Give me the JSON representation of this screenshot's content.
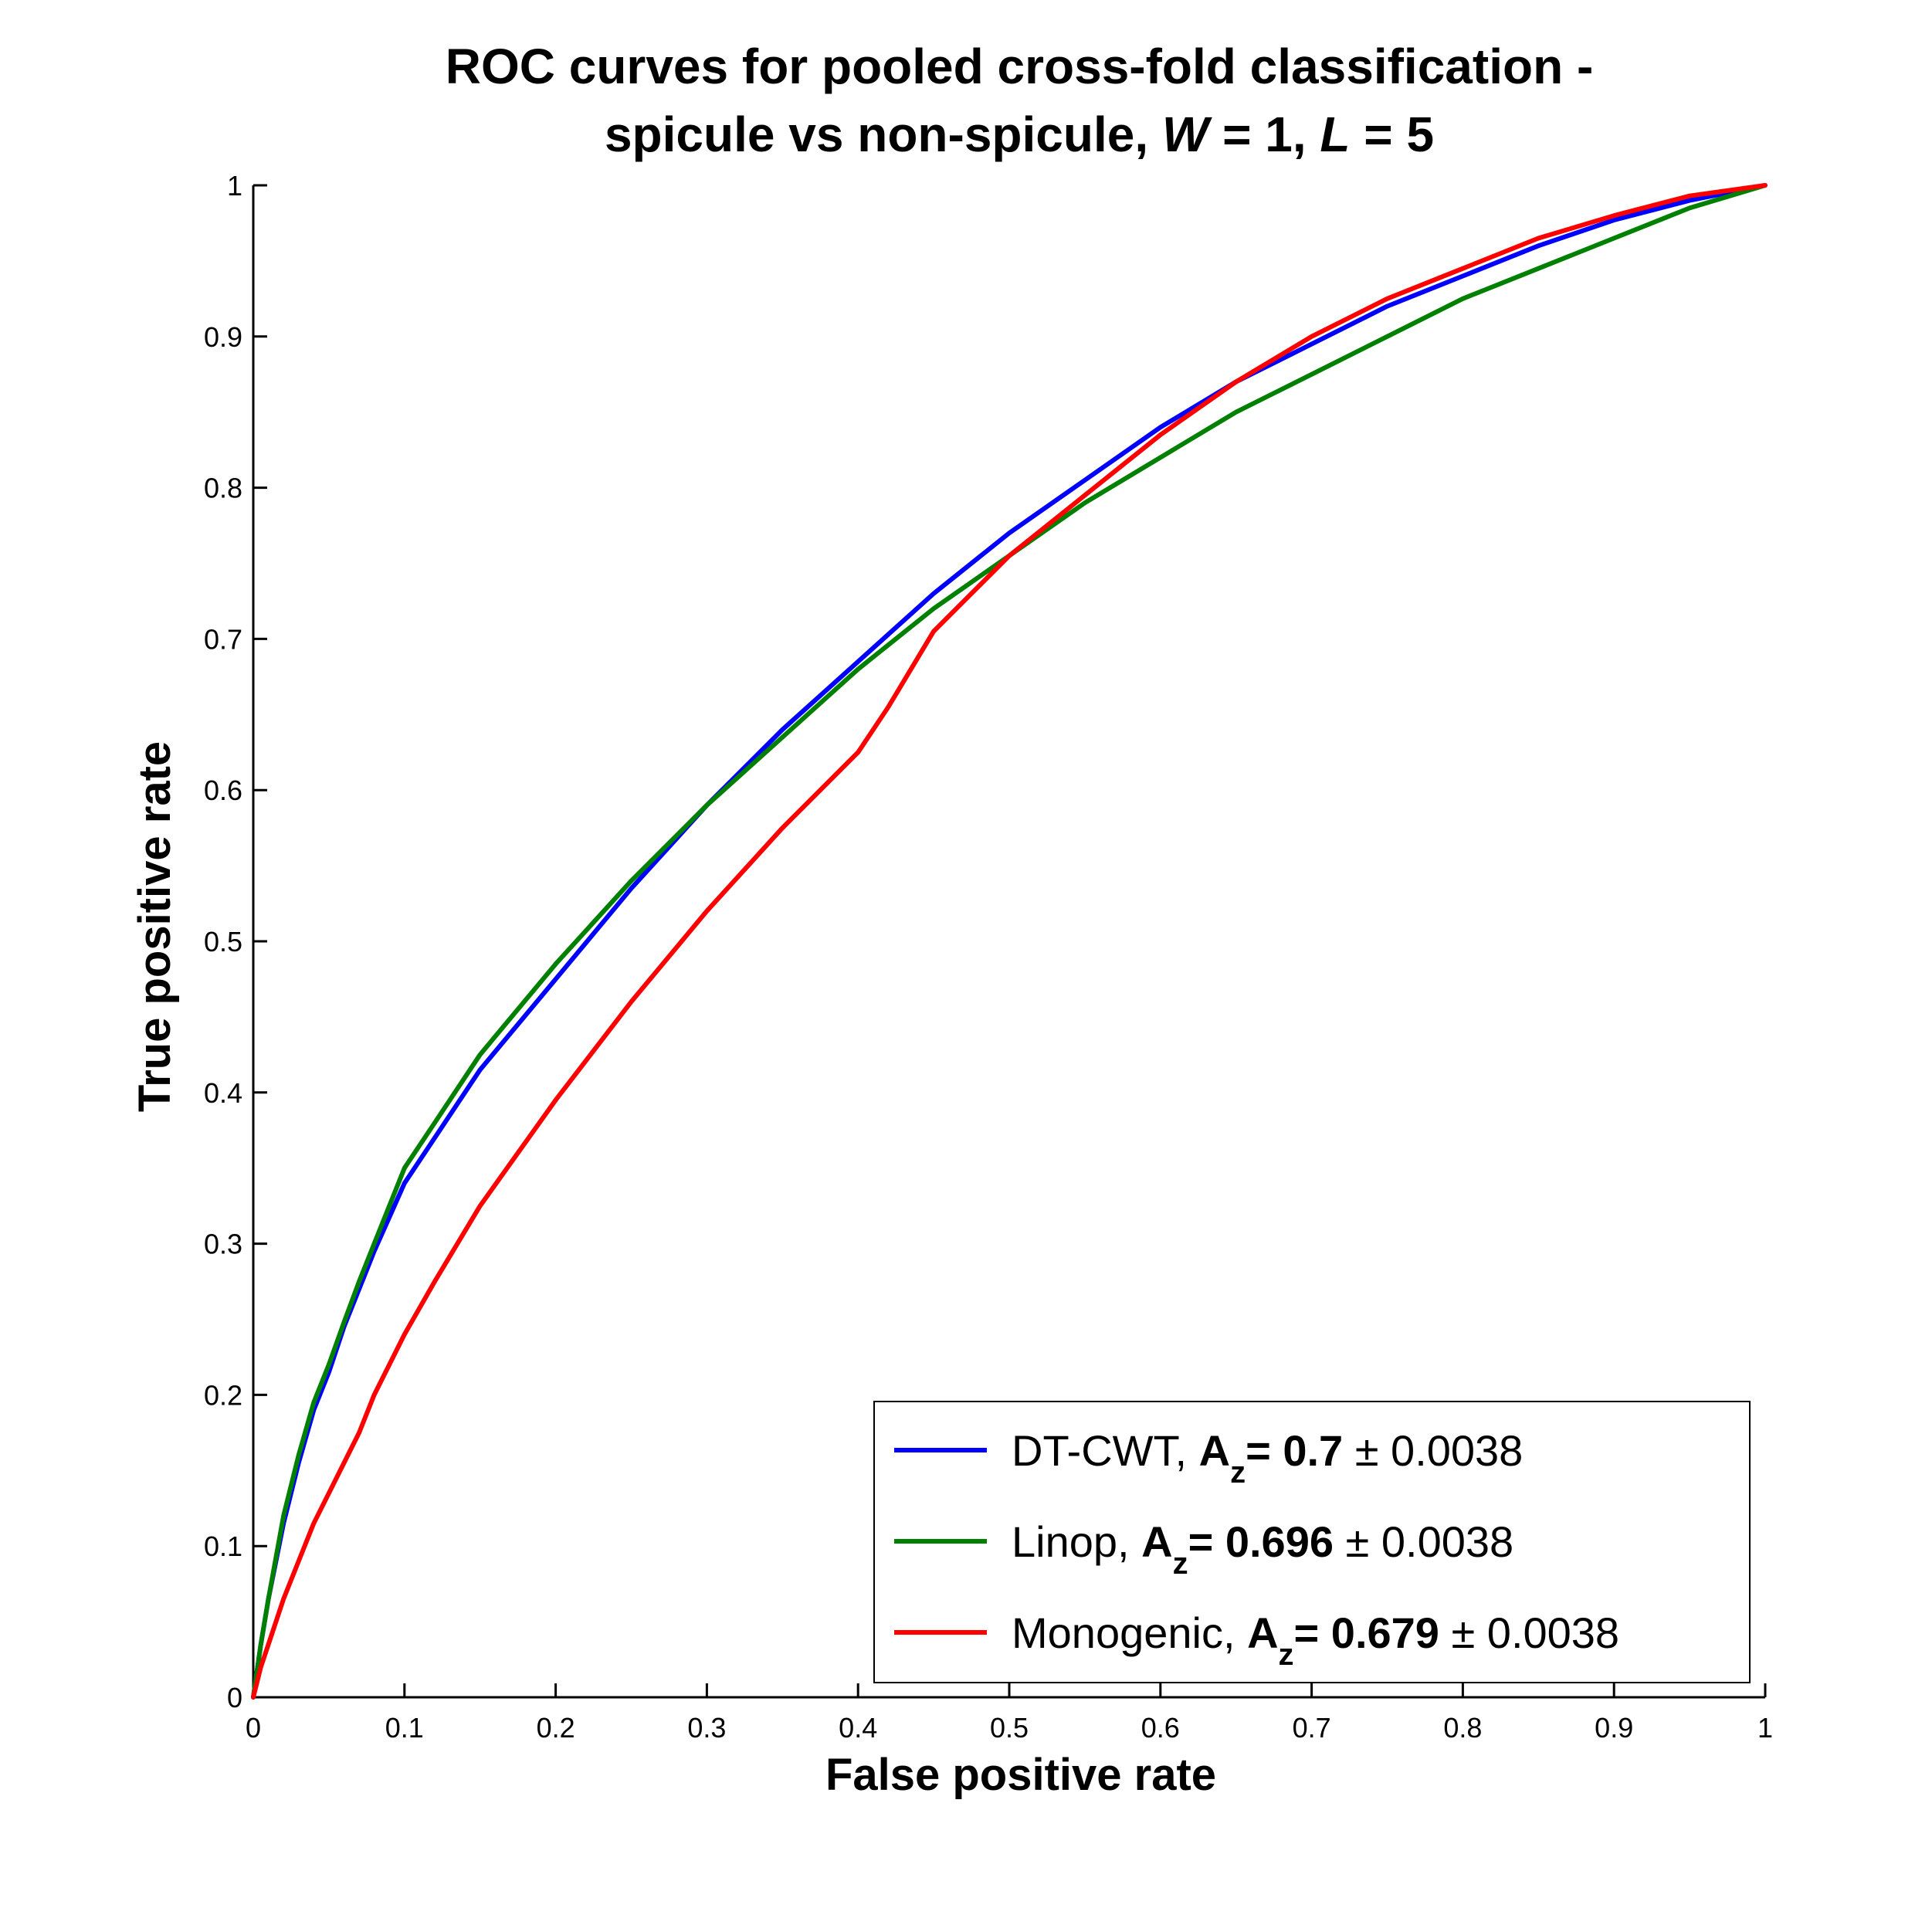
{
  "chart_data": {
    "type": "line",
    "title_line1": "ROC curves for pooled cross-fold classification -",
    "title_line2": {
      "prefix": "spicule vs non-spicule,  ",
      "w_symbol": "W",
      "w_value": " = 1,  ",
      "l_symbol": "L",
      "l_value": " = 5"
    },
    "xlabel": "False positive rate",
    "ylabel": "True positive rate",
    "xlim": [
      0,
      1
    ],
    "ylim": [
      0,
      1
    ],
    "xticks": [
      "0",
      "0.1",
      "0.2",
      "0.3",
      "0.4",
      "0.5",
      "0.6",
      "0.7",
      "0.8",
      "0.9",
      "1"
    ],
    "yticks": [
      "0",
      "0.1",
      "0.2",
      "0.3",
      "0.4",
      "0.5",
      "0.6",
      "0.7",
      "0.8",
      "0.9",
      "1"
    ],
    "grid": false,
    "legend_position": "bottom-right",
    "series": [
      {
        "name": "DT-CWT",
        "color": "#0000ff",
        "az_symbol": "A",
        "az_subscript": "z",
        "az_value": "= 0.7",
        "pm": "±",
        "std": "0.0038",
        "x": [
          0,
          0.005,
          0.01,
          0.02,
          0.03,
          0.04,
          0.05,
          0.06,
          0.07,
          0.08,
          0.1,
          0.12,
          0.15,
          0.2,
          0.25,
          0.3,
          0.35,
          0.4,
          0.45,
          0.5,
          0.55,
          0.6,
          0.65,
          0.7,
          0.75,
          0.8,
          0.85,
          0.9,
          0.95,
          1
        ],
        "y": [
          0,
          0.035,
          0.065,
          0.115,
          0.155,
          0.19,
          0.215,
          0.245,
          0.27,
          0.295,
          0.34,
          0.37,
          0.415,
          0.475,
          0.535,
          0.59,
          0.64,
          0.685,
          0.73,
          0.77,
          0.805,
          0.84,
          0.87,
          0.895,
          0.92,
          0.94,
          0.96,
          0.977,
          0.99,
          1
        ]
      },
      {
        "name": "Linop",
        "color": "#008000",
        "az_symbol": "A",
        "az_subscript": "z",
        "az_value": "= 0.696",
        "pm": "±",
        "std": "0.0038",
        "x": [
          0,
          0.005,
          0.01,
          0.02,
          0.03,
          0.04,
          0.05,
          0.06,
          0.07,
          0.08,
          0.1,
          0.12,
          0.15,
          0.2,
          0.25,
          0.3,
          0.35,
          0.4,
          0.45,
          0.5,
          0.55,
          0.6,
          0.65,
          0.7,
          0.75,
          0.8,
          0.85,
          0.9,
          0.95,
          1
        ],
        "y": [
          0,
          0.035,
          0.065,
          0.12,
          0.16,
          0.195,
          0.22,
          0.248,
          0.275,
          0.3,
          0.35,
          0.38,
          0.425,
          0.485,
          0.54,
          0.59,
          0.635,
          0.68,
          0.72,
          0.755,
          0.79,
          0.82,
          0.85,
          0.875,
          0.9,
          0.925,
          0.945,
          0.965,
          0.985,
          1
        ]
      },
      {
        "name": "Monogenic",
        "color": "#ff0000",
        "az_symbol": "A",
        "az_subscript": "z",
        "az_value": "= 0.679",
        "pm": "±",
        "std": "0.0038",
        "x": [
          0,
          0.005,
          0.01,
          0.02,
          0.03,
          0.04,
          0.05,
          0.06,
          0.07,
          0.08,
          0.1,
          0.12,
          0.15,
          0.2,
          0.25,
          0.3,
          0.35,
          0.4,
          0.42,
          0.45,
          0.5,
          0.55,
          0.6,
          0.65,
          0.7,
          0.75,
          0.8,
          0.85,
          0.9,
          0.95,
          1
        ],
        "y": [
          0,
          0.02,
          0.035,
          0.065,
          0.09,
          0.115,
          0.135,
          0.155,
          0.175,
          0.2,
          0.24,
          0.275,
          0.325,
          0.395,
          0.46,
          0.52,
          0.575,
          0.625,
          0.655,
          0.705,
          0.755,
          0.795,
          0.835,
          0.87,
          0.9,
          0.925,
          0.945,
          0.965,
          0.98,
          0.993,
          1
        ]
      }
    ]
  }
}
